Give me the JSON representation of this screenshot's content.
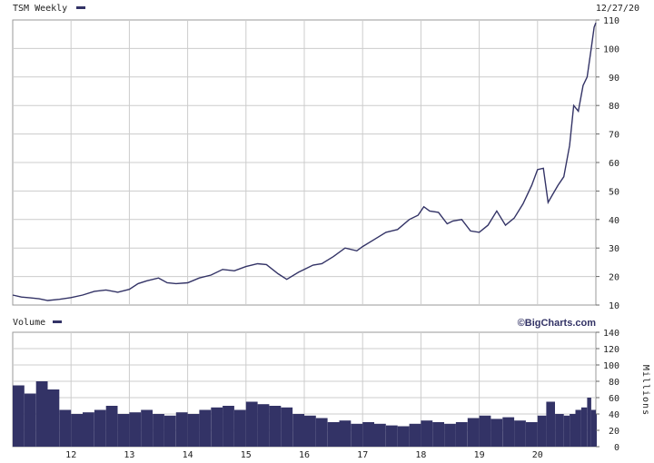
{
  "chart_data": [
    {
      "type": "line",
      "title": "TSM Weekly",
      "date_label": "12/27/20",
      "legend_color": "#333366",
      "line_color": "#333366",
      "grid": true,
      "ylim": [
        10,
        110
      ],
      "yticks": [
        10,
        20,
        30,
        40,
        50,
        60,
        70,
        80,
        90,
        100,
        110
      ],
      "y_axis_side": "right",
      "x_years": [
        "12",
        "13",
        "14",
        "15",
        "16",
        "17",
        "18",
        "19",
        "20"
      ],
      "x_start": 2011.0,
      "x_end": 2021.0,
      "series": [
        {
          "name": "TSM",
          "points": [
            [
              2011.0,
              13.5
            ],
            [
              2011.15,
              12.8
            ],
            [
              2011.3,
              12.5
            ],
            [
              2011.45,
              12.2
            ],
            [
              2011.6,
              11.6
            ],
            [
              2011.8,
              12.0
            ],
            [
              2012.0,
              12.6
            ],
            [
              2012.2,
              13.5
            ],
            [
              2012.4,
              14.8
            ],
            [
              2012.6,
              15.3
            ],
            [
              2012.8,
              14.5
            ],
            [
              2013.0,
              15.5
            ],
            [
              2013.15,
              17.5
            ],
            [
              2013.3,
              18.5
            ],
            [
              2013.5,
              19.5
            ],
            [
              2013.65,
              17.8
            ],
            [
              2013.8,
              17.5
            ],
            [
              2014.0,
              17.8
            ],
            [
              2014.2,
              19.5
            ],
            [
              2014.4,
              20.5
            ],
            [
              2014.6,
              22.5
            ],
            [
              2014.8,
              22.0
            ],
            [
              2015.0,
              23.5
            ],
            [
              2015.2,
              24.5
            ],
            [
              2015.35,
              24.2
            ],
            [
              2015.55,
              21.0
            ],
            [
              2015.7,
              19.0
            ],
            [
              2015.9,
              21.5
            ],
            [
              2016.0,
              22.5
            ],
            [
              2016.15,
              24.0
            ],
            [
              2016.3,
              24.5
            ],
            [
              2016.5,
              27.0
            ],
            [
              2016.7,
              30.0
            ],
            [
              2016.9,
              29.0
            ],
            [
              2017.0,
              30.5
            ],
            [
              2017.2,
              33.0
            ],
            [
              2017.4,
              35.5
            ],
            [
              2017.6,
              36.5
            ],
            [
              2017.8,
              40.0
            ],
            [
              2017.95,
              41.5
            ],
            [
              2018.05,
              44.5
            ],
            [
              2018.15,
              43.0
            ],
            [
              2018.3,
              42.5
            ],
            [
              2018.45,
              38.5
            ],
            [
              2018.55,
              39.5
            ],
            [
              2018.7,
              40.0
            ],
            [
              2018.85,
              36.0
            ],
            [
              2019.0,
              35.5
            ],
            [
              2019.15,
              38.0
            ],
            [
              2019.3,
              43.0
            ],
            [
              2019.45,
              38.0
            ],
            [
              2019.6,
              40.5
            ],
            [
              2019.75,
              45.5
            ],
            [
              2019.9,
              52.0
            ],
            [
              2020.0,
              57.5
            ],
            [
              2020.1,
              58.0
            ],
            [
              2020.18,
              46.0
            ],
            [
              2020.25,
              48.5
            ],
            [
              2020.35,
              52.0
            ],
            [
              2020.45,
              55.0
            ],
            [
              2020.55,
              66.0
            ],
            [
              2020.62,
              80.0
            ],
            [
              2020.7,
              78.0
            ],
            [
              2020.78,
              87.0
            ],
            [
              2020.85,
              90.0
            ],
            [
              2020.92,
              100.0
            ],
            [
              2020.97,
              107.5
            ],
            [
              2021.0,
              109.0
            ]
          ]
        }
      ]
    },
    {
      "type": "bar",
      "title": "Volume",
      "brand": "©BigCharts.com",
      "unit_label": "Millions",
      "legend_color": "#333366",
      "bar_color": "#333366",
      "grid": true,
      "ylim": [
        0,
        140
      ],
      "yticks": [
        0,
        20,
        40,
        60,
        80,
        100,
        120,
        140
      ],
      "y_axis_side": "right",
      "x_start": 2011.0,
      "x_end": 2021.0,
      "series": [
        {
          "name": "Volume",
          "points": [
            [
              2011.0,
              75
            ],
            [
              2011.2,
              65
            ],
            [
              2011.4,
              80
            ],
            [
              2011.6,
              70
            ],
            [
              2011.8,
              45
            ],
            [
              2012.0,
              40
            ],
            [
              2012.2,
              42
            ],
            [
              2012.4,
              45
            ],
            [
              2012.6,
              50
            ],
            [
              2012.8,
              40
            ],
            [
              2013.0,
              42
            ],
            [
              2013.2,
              45
            ],
            [
              2013.4,
              40
            ],
            [
              2013.6,
              38
            ],
            [
              2013.8,
              42
            ],
            [
              2014.0,
              40
            ],
            [
              2014.2,
              45
            ],
            [
              2014.4,
              48
            ],
            [
              2014.6,
              50
            ],
            [
              2014.8,
              45
            ],
            [
              2015.0,
              55
            ],
            [
              2015.2,
              52
            ],
            [
              2015.4,
              50
            ],
            [
              2015.6,
              48
            ],
            [
              2015.8,
              40
            ],
            [
              2016.0,
              38
            ],
            [
              2016.2,
              35
            ],
            [
              2016.4,
              30
            ],
            [
              2016.6,
              32
            ],
            [
              2016.8,
              28
            ],
            [
              2017.0,
              30
            ],
            [
              2017.2,
              28
            ],
            [
              2017.4,
              26
            ],
            [
              2017.6,
              25
            ],
            [
              2017.8,
              28
            ],
            [
              2018.0,
              32
            ],
            [
              2018.2,
              30
            ],
            [
              2018.4,
              28
            ],
            [
              2018.6,
              30
            ],
            [
              2018.8,
              35
            ],
            [
              2019.0,
              38
            ],
            [
              2019.2,
              34
            ],
            [
              2019.4,
              36
            ],
            [
              2019.6,
              32
            ],
            [
              2019.8,
              30
            ],
            [
              2020.0,
              38
            ],
            [
              2020.15,
              55
            ],
            [
              2020.3,
              40
            ],
            [
              2020.45,
              38
            ],
            [
              2020.55,
              40
            ],
            [
              2020.65,
              45
            ],
            [
              2020.75,
              48
            ],
            [
              2020.85,
              60
            ],
            [
              2020.92,
              45
            ],
            [
              2021.0,
              40
            ]
          ]
        }
      ]
    }
  ]
}
